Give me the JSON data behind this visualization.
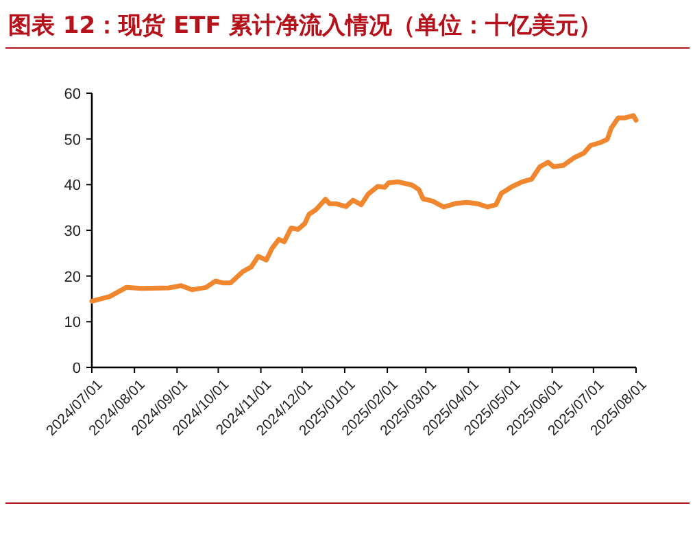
{
  "chart_data": {
    "type": "line",
    "title": "图表 12：现货 ETF 累计净流入情况（单位：十亿美元）",
    "x": [
      "2024-07-01",
      "2024-07-14",
      "2024-07-26",
      "2024-08-06",
      "2024-08-26",
      "2024-09-04",
      "2024-09-12",
      "2024-09-22",
      "2024-09-29",
      "2024-10-04",
      "2024-10-10",
      "2024-10-19",
      "2024-10-25",
      "2024-10-30",
      "2024-11-05",
      "2024-11-09",
      "2024-11-14",
      "2024-11-18",
      "2024-11-23",
      "2024-11-28",
      "2024-12-03",
      "2024-12-06",
      "2024-12-11",
      "2024-12-18",
      "2024-12-21",
      "2024-12-26",
      "2025-01-02",
      "2025-01-07",
      "2025-01-13",
      "2025-01-18",
      "2025-01-25",
      "2025-01-30",
      "2025-02-02",
      "2025-02-09",
      "2025-02-19",
      "2025-02-24",
      "2025-02-27",
      "2025-03-06",
      "2025-03-14",
      "2025-03-23",
      "2025-03-31",
      "2025-04-08",
      "2025-04-15",
      "2025-04-21",
      "2025-04-25",
      "2025-05-03",
      "2025-05-10",
      "2025-05-17",
      "2025-05-23",
      "2025-05-29",
      "2025-06-02",
      "2025-06-09",
      "2025-06-17",
      "2025-06-24",
      "2025-06-29",
      "2025-07-06",
      "2025-07-11",
      "2025-07-14",
      "2025-07-19",
      "2025-07-24",
      "2025-07-30",
      "2025-08-01"
    ],
    "series": [
      {
        "color": "#f0862e",
        "values": [
          14.5,
          15.5,
          17.5,
          17.3,
          17.4,
          17.9,
          17.0,
          17.5,
          18.9,
          18.5,
          18.5,
          21.0,
          22.0,
          24.3,
          23.5,
          26.0,
          28.0,
          27.5,
          30.5,
          30.2,
          31.5,
          33.5,
          34.5,
          36.8,
          35.8,
          35.8,
          35.2,
          36.6,
          35.6,
          37.9,
          39.6,
          39.4,
          40.4,
          40.6,
          39.9,
          38.9,
          36.9,
          36.4,
          35.1,
          35.9,
          36.1,
          35.8,
          35.1,
          35.6,
          38.1,
          39.6,
          40.6,
          41.2,
          43.9,
          44.9,
          43.9,
          44.2,
          45.9,
          46.9,
          48.6,
          49.2,
          49.9,
          52.4,
          54.6,
          54.6,
          55.1,
          54.1
        ]
      }
    ],
    "xlim": [
      "2024-07-01",
      "2025-08-01"
    ],
    "xticks": [
      {
        "value": "2024-07-01",
        "label": "2024/07/01"
      },
      {
        "value": "2024-08-01",
        "label": "2024/08/01"
      },
      {
        "value": "2024-09-01",
        "label": "2024/09/01"
      },
      {
        "value": "2024-10-01",
        "label": "2024/10/01"
      },
      {
        "value": "2024-11-01",
        "label": "2024/11/01"
      },
      {
        "value": "2024-12-01",
        "label": "2024/12/01"
      },
      {
        "value": "2025-01-01",
        "label": "2025/01/01"
      },
      {
        "value": "2025-02-01",
        "label": "2025/02/01"
      },
      {
        "value": "2025-03-01",
        "label": "2025/03/01"
      },
      {
        "value": "2025-04-01",
        "label": "2025/04/01"
      },
      {
        "value": "2025-05-01",
        "label": "2025/05/01"
      },
      {
        "value": "2025-06-01",
        "label": "2025/06/01"
      },
      {
        "value": "2025-07-01",
        "label": "2025/07/01"
      },
      {
        "value": "2025-08-01",
        "label": "2025/08/01"
      }
    ],
    "ylim": [
      0,
      60
    ],
    "yticks": [
      0,
      10,
      20,
      30,
      40,
      50,
      60
    ],
    "grid": false,
    "marker": "none",
    "line_style": "solid"
  }
}
